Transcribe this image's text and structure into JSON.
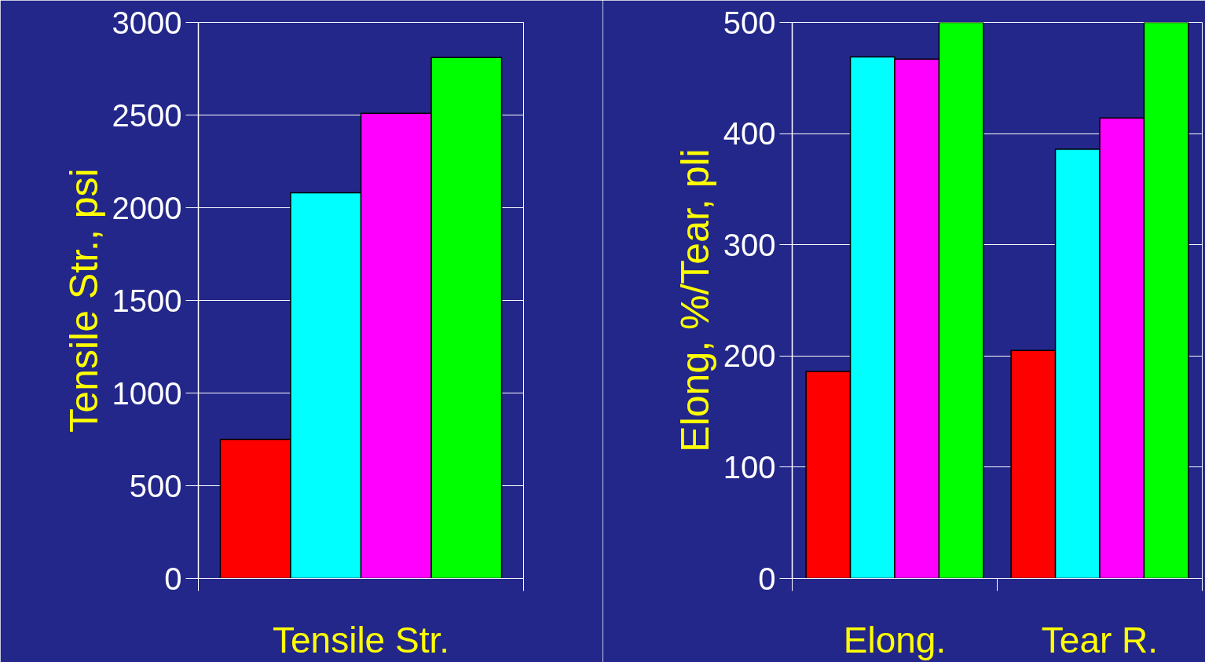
{
  "chart_data": [
    {
      "type": "bar",
      "ylabel": "Tensile Str., psi",
      "categories": [
        "Tensile Str."
      ],
      "series": [
        {
          "color": "#ff0000",
          "values": [
            750
          ]
        },
        {
          "color": "#00ffff",
          "values": [
            2080
          ]
        },
        {
          "color": "#ff00ff",
          "values": [
            2510
          ]
        },
        {
          "color": "#00ff00",
          "values": [
            2810
          ]
        }
      ],
      "ylim": [
        0,
        3000
      ],
      "yticks": [
        0,
        500,
        1000,
        1500,
        2000,
        2500,
        3000
      ],
      "grid": "y"
    },
    {
      "type": "bar",
      "ylabel": "Elong, %/Tear, pli",
      "categories": [
        "Elong.",
        "Tear R."
      ],
      "series": [
        {
          "color": "#ff0000",
          "values": [
            186,
            205
          ]
        },
        {
          "color": "#00ffff",
          "values": [
            469,
            386
          ]
        },
        {
          "color": "#ff00ff",
          "values": [
            467,
            414
          ]
        },
        {
          "color": "#00ff00",
          "values": [
            500,
            500
          ]
        }
      ],
      "ylim": [
        0,
        500
      ],
      "yticks": [
        0,
        100,
        200,
        300,
        400,
        500
      ],
      "grid": "y"
    }
  ]
}
